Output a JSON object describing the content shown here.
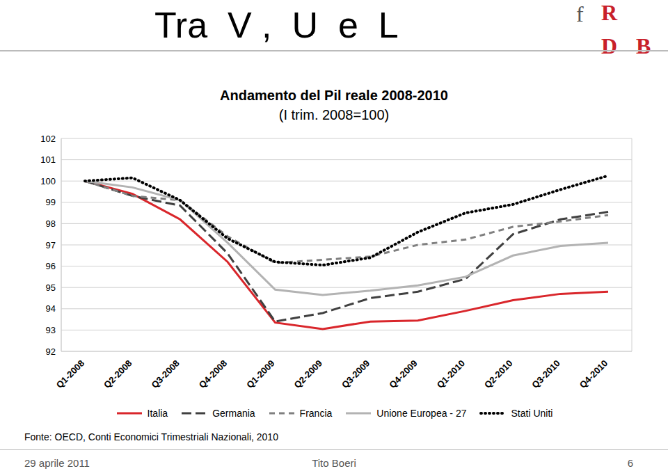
{
  "slide": {
    "title": "Tra  V ,  U  e  L",
    "logo": "fRDB",
    "date": "29 aprile 2011",
    "author": "Tito Boeri",
    "page": 6
  },
  "chart_data": {
    "type": "line",
    "title": "Andamento del Pil reale 2008-2010",
    "subtitle": "(I trim. 2008=100)",
    "source": "Fonte: OECD, Conti Economici Trimestriali Nazionali, 2010",
    "categories": [
      "Q1-2008",
      "Q2-2008",
      "Q3-2008",
      "Q4-2008",
      "Q1-2009",
      "Q2-2009",
      "Q3-2009",
      "Q4-2009",
      "Q1-2010",
      "Q2-2010",
      "Q3-2010",
      "Q4-2010"
    ],
    "series": [
      {
        "name": "Italia",
        "color": "#d9262b",
        "line_style": "solid",
        "values": [
          100,
          99.4,
          98.2,
          96.2,
          93.35,
          93.05,
          93.4,
          93.45,
          93.9,
          94.4,
          94.7,
          94.8
        ]
      },
      {
        "name": "Germania",
        "color": "#404040",
        "line_style": "longdash",
        "values": [
          100,
          99.3,
          98.85,
          96.6,
          93.4,
          93.8,
          94.5,
          94.8,
          95.4,
          97.5,
          98.2,
          98.55
        ]
      },
      {
        "name": "Francia",
        "color": "#808080",
        "line_style": "dashed",
        "values": [
          100,
          99.3,
          99.1,
          97.4,
          96.15,
          96.3,
          96.45,
          97.0,
          97.25,
          97.85,
          98.1,
          98.4
        ]
      },
      {
        "name": "Unione Europea - 27",
        "color": "#b3b3b3",
        "line_style": "solid",
        "values": [
          100,
          99.7,
          99.1,
          97.1,
          94.9,
          94.65,
          94.85,
          95.1,
          95.5,
          96.5,
          96.95,
          97.1
        ]
      },
      {
        "name": "Stati Uniti",
        "color": "#000000",
        "line_style": "dotted",
        "values": [
          100,
          100.15,
          99.1,
          97.3,
          96.2,
          96.05,
          96.4,
          97.6,
          98.5,
          98.9,
          99.6,
          100.25
        ]
      }
    ],
    "ylim": [
      92,
      102
    ],
    "yticks": [
      92,
      93,
      94,
      95,
      96,
      97,
      98,
      99,
      100,
      101,
      102
    ],
    "grid": true,
    "legend": "bottom"
  }
}
